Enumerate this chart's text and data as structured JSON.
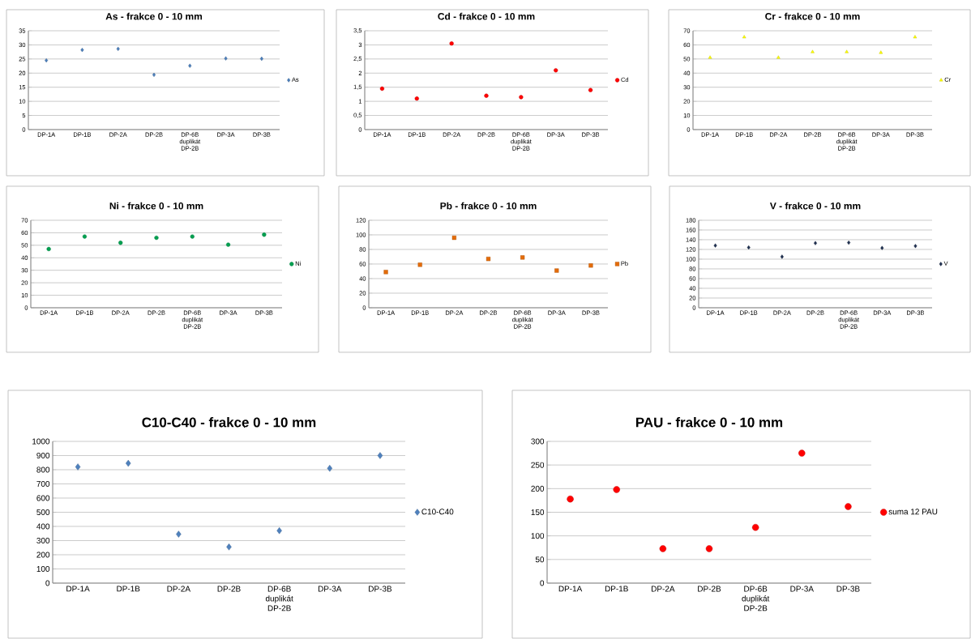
{
  "chart_data": [
    {
      "type": "scatter",
      "title": "As - frakce 0 - 10 mm",
      "categories": [
        "DP-1A",
        "DP-1B",
        "DP-2A",
        "DP-2B",
        "DP-6B duplikát DP-2B",
        "DP-3A",
        "DP-3B"
      ],
      "series": [
        {
          "name": "As",
          "color": "#4a7ebb",
          "values": [
            24.5,
            28.2,
            28.6,
            19.4,
            22.6,
            25.2,
            25.1
          ]
        }
      ],
      "marker": "diamond",
      "ylim": [
        0,
        35
      ],
      "yticks": [
        0,
        5,
        10,
        15,
        20,
        25,
        30,
        35
      ],
      "grid": "y",
      "legend": "right"
    },
    {
      "type": "scatter",
      "title": "Cd - frakce 0 - 10 mm",
      "categories": [
        "DP-1A",
        "DP-1B",
        "DP-2A",
        "DP-2B",
        "DP-6B duplikát DP-2B",
        "DP-3A",
        "DP-3B"
      ],
      "series": [
        {
          "name": "Cd",
          "color": "#ff0000",
          "values": [
            1.45,
            1.1,
            3.05,
            1.2,
            1.15,
            2.1,
            1.4
          ]
        }
      ],
      "marker": "circle",
      "ylim": [
        0,
        3.5
      ],
      "yticks": [
        0,
        {
          "value": 0.5,
          "label": "0,5"
        },
        1,
        {
          "value": 1.5,
          "label": "1,5"
        },
        2,
        {
          "value": 2.5,
          "label": "2,5"
        },
        3,
        {
          "value": 3.5,
          "label": "3,5"
        }
      ],
      "grid": "y",
      "legend": "right"
    },
    {
      "type": "scatter",
      "title": "Cr  - frakce 0 - 10 mm",
      "categories": [
        "DP-1A",
        "DP-1B",
        "DP-2A",
        "DP-2B",
        "DP-6B duplikát DP-2B",
        "DP-3A",
        "DP-3B"
      ],
      "series": [
        {
          "name": "Cr",
          "color": "#ffff00",
          "values": [
            51,
            65.5,
            51,
            55,
            55,
            54.5,
            65.5
          ]
        }
      ],
      "marker": "triangle",
      "ylim": [
        0,
        70
      ],
      "yticks": [
        0,
        10,
        20,
        30,
        40,
        50,
        60,
        70
      ],
      "grid": "y",
      "legend": "right"
    },
    {
      "type": "scatter",
      "title": "Ni - frakce 0 - 10 mm",
      "categories": [
        "DP-1A",
        "DP-1B",
        "DP-2A",
        "DP-2B",
        "DP-6B duplikát DP-2B",
        "DP-3A",
        "DP-3B"
      ],
      "series": [
        {
          "name": "Ni",
          "color": "#00a050",
          "values": [
            47,
            57,
            52,
            56,
            57,
            50.5,
            58.5
          ]
        }
      ],
      "marker": "circle",
      "ylim": [
        0,
        70
      ],
      "yticks": [
        0,
        10,
        20,
        30,
        40,
        50,
        60,
        70
      ],
      "grid": "y",
      "legend": "right"
    },
    {
      "type": "scatter",
      "title": "Pb - frakce 0 - 10 mm",
      "categories": [
        "DP-1A",
        "DP-1B",
        "DP-2A",
        "DP-2B",
        "DP-6B duplikát DP-2B",
        "DP-3A",
        "DP-3B"
      ],
      "series": [
        {
          "name": "Pb",
          "color": "#e46c0a",
          "values": [
            49,
            59,
            96,
            67,
            69,
            51,
            58
          ]
        }
      ],
      "marker": "square",
      "ylim": [
        0,
        120
      ],
      "yticks": [
        0,
        20,
        40,
        60,
        80,
        100,
        120
      ],
      "grid": "y",
      "legend": "right"
    },
    {
      "type": "scatter",
      "title": "V  - frakce 0 - 10 mm",
      "categories": [
        "DP-1A",
        "DP-1B",
        "DP-2A",
        "DP-2B",
        "DP-6B duplikát DP-2B",
        "DP-3A",
        "DP-3B"
      ],
      "series": [
        {
          "name": "V",
          "color": "#1f3050",
          "values": [
            128,
            124,
            105,
            133,
            134,
            123,
            127
          ]
        }
      ],
      "marker": "diamond",
      "ylim": [
        0,
        180
      ],
      "yticks": [
        0,
        20,
        40,
        60,
        80,
        100,
        120,
        140,
        160,
        180
      ],
      "grid": "y",
      "legend": "right"
    },
    {
      "type": "scatter",
      "title": "C10-C40 - frakce 0 - 10 mm",
      "categories": [
        "DP-1A",
        "DP-1B",
        "DP-2A",
        "DP-2B",
        "DP-6B duplikát DP-2B",
        "DP-3A",
        "DP-3B"
      ],
      "series": [
        {
          "name": "C10-C40",
          "color": "#4f81bd",
          "values": [
            820,
            845,
            345,
            255,
            370,
            810,
            900
          ]
        }
      ],
      "marker": "diamond",
      "ylim": [
        0,
        1000
      ],
      "yticks": [
        0,
        100,
        200,
        300,
        400,
        500,
        600,
        700,
        800,
        900,
        1000
      ],
      "grid": "y",
      "legend": "right"
    },
    {
      "type": "scatter",
      "title": "PAU - frakce 0 - 10 mm",
      "categories": [
        "DP-1A",
        "DP-1B",
        "DP-2A",
        "DP-2B",
        "DP-6B duplikát DP-2B",
        "DP-3A",
        "DP-3B"
      ],
      "series": [
        {
          "name": "suma 12 PAU",
          "color": "#ff0000",
          "values": [
            178,
            198,
            73,
            73,
            118,
            275,
            162
          ]
        }
      ],
      "marker": "circle",
      "ylim": [
        0,
        300
      ],
      "yticks": [
        0,
        50,
        100,
        150,
        200,
        250,
        300
      ],
      "grid": "y",
      "legend": "right"
    }
  ]
}
